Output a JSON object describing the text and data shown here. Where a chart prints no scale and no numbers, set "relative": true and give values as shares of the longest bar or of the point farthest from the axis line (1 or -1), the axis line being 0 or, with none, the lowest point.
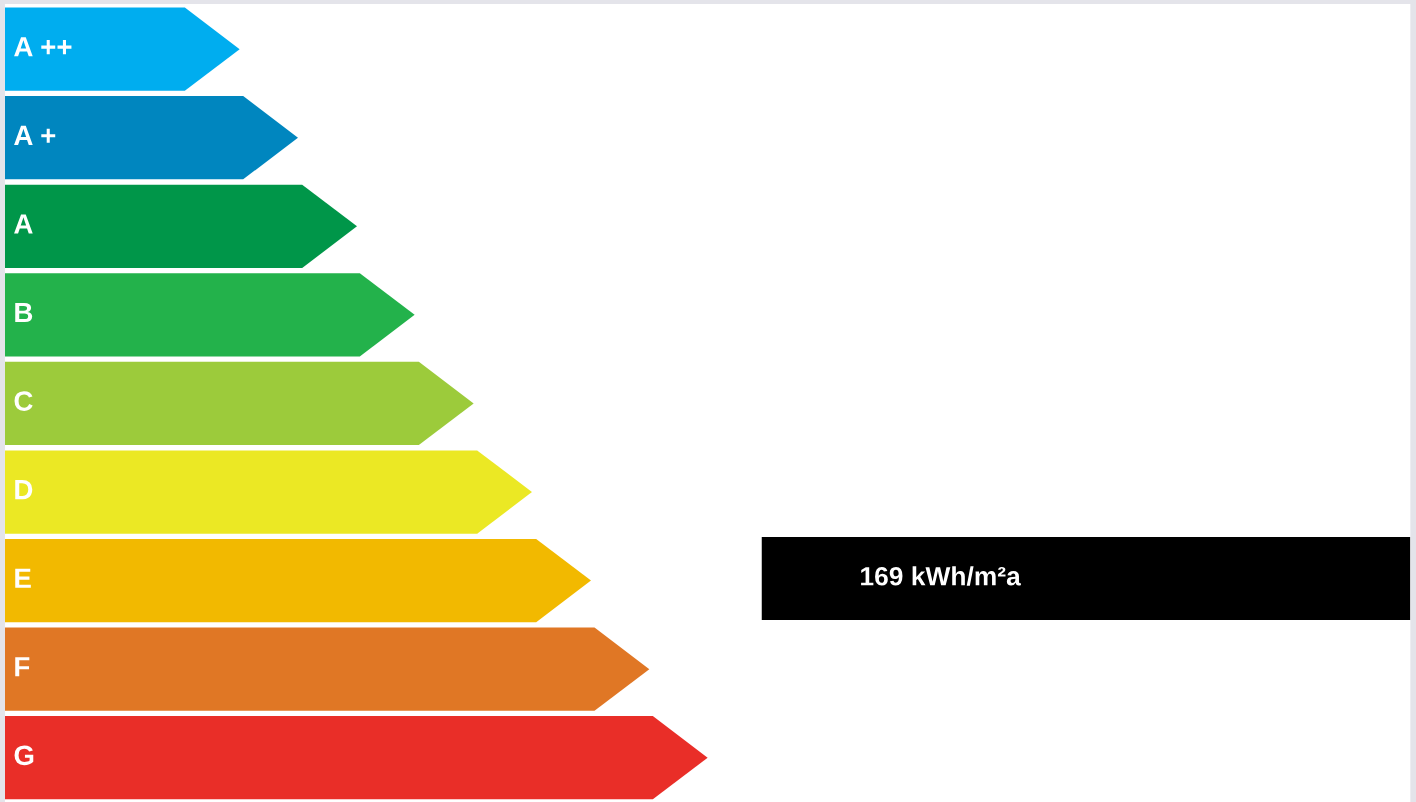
{
  "chart_data": {
    "type": "bar",
    "orientation": "horizontal",
    "relative": true,
    "categories": [
      "A ++",
      "A +",
      "A",
      "B",
      "C",
      "D",
      "E",
      "F",
      "G"
    ],
    "values": [
      0.334,
      0.417,
      0.501,
      0.583,
      0.667,
      0.75,
      0.834,
      0.917,
      1
    ],
    "colors": [
      "#00adef",
      "#0086bf",
      "#009649",
      "#23b24b",
      "#9ccb3b",
      "#ebe824",
      "#f2b900",
      "#e07725",
      "#e92e28"
    ],
    "annotations": [
      "169 kWh/m²a"
    ]
  }
}
